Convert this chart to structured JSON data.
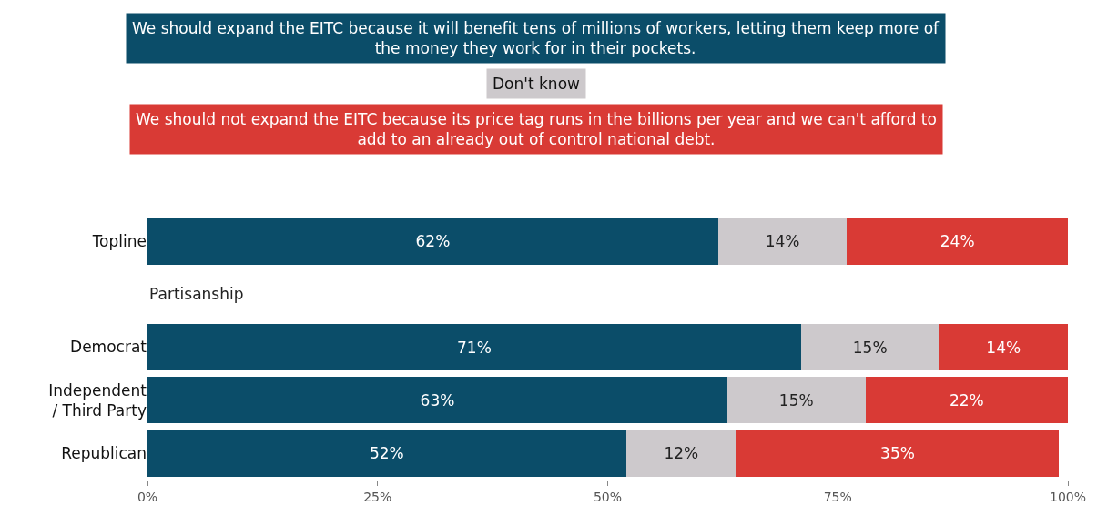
{
  "chart_data": {
    "type": "bar",
    "orientation": "horizontal",
    "stacked": true,
    "categories": [
      "Topline",
      null,
      "Democrat",
      "Independent / Third Party",
      "Republican"
    ],
    "series": [
      {
        "name": "We should expand the EITC because it will benefit tens of millions of workers, letting them keep more of the money they work for in their pockets.",
        "color": "#0b4d69",
        "values": [
          62,
          null,
          71,
          63,
          52
        ],
        "value_labels": [
          "62%",
          null,
          "71%",
          "63%",
          "52%"
        ]
      },
      {
        "name": "Don't know",
        "color": "#cdc9cc",
        "values": [
          14,
          null,
          15,
          15,
          12
        ],
        "value_labels": [
          "14%",
          null,
          "15%",
          "15%",
          "12%"
        ]
      },
      {
        "name": "We should not expand the EITC because its price tag runs in the billions per year and we can't afford to add to an already out of control national debt.",
        "color": "#d93a35",
        "values": [
          24,
          null,
          14,
          22,
          35
        ],
        "value_labels": [
          "24%",
          null,
          "14%",
          "22%",
          "35%"
        ]
      }
    ],
    "annotations": [
      "Partisanship"
    ],
    "xlim": [
      0,
      100
    ],
    "xticks": [
      {
        "value": 0,
        "label": "0%"
      },
      {
        "value": 25,
        "label": "25%"
      },
      {
        "value": 50,
        "label": "50%"
      },
      {
        "value": 75,
        "label": "75%"
      },
      {
        "value": 100,
        "label": "100%"
      }
    ],
    "legend": "top"
  }
}
